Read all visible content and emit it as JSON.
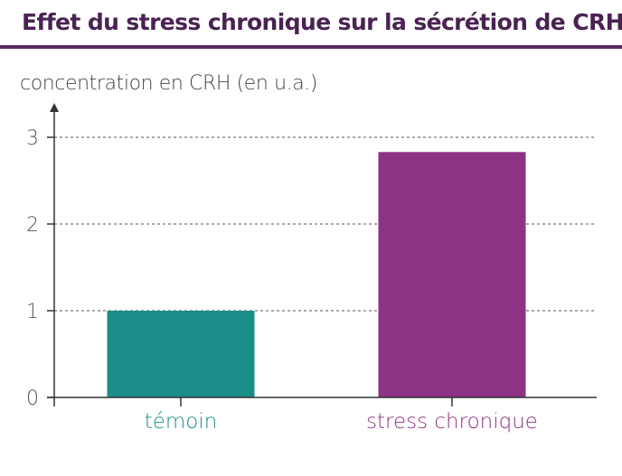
{
  "title": "Effet du stress chronique sur la sécrétion de CRH",
  "chart_data": {
    "type": "bar",
    "title": "Effet du stress chronique sur la sécrétion de CRH",
    "ylabel": "concentration en CRH (en u.a.)",
    "xlabel": "",
    "categories": [
      "témoin",
      "stress chronique"
    ],
    "values": [
      1.0,
      2.83
    ],
    "colors": [
      "#1a8d89",
      "#8e3283"
    ],
    "yticks": [
      "0",
      "1",
      "2",
      "3"
    ],
    "ylim": [
      0,
      3.4
    ],
    "grid": "dashed horizontal lines at y ticks"
  }
}
